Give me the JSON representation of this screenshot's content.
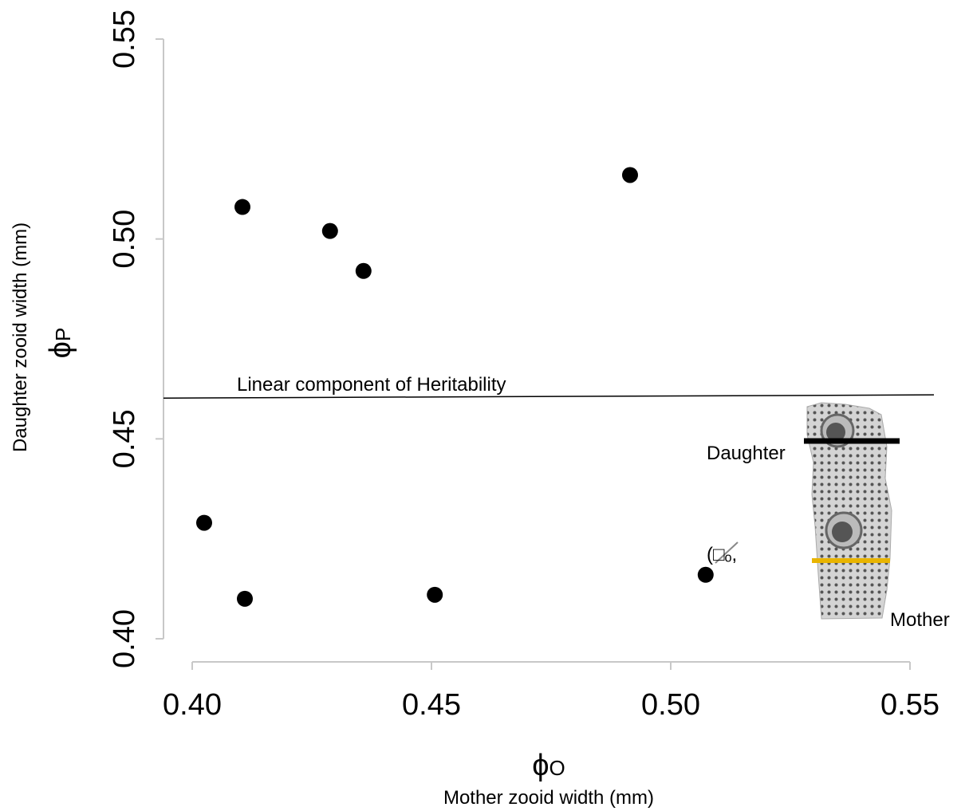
{
  "chart_data": {
    "type": "scatter",
    "x_label": "Mother zooid width (mm)",
    "x_symbol": "ϕ",
    "x_symbol_sub": "O",
    "y_label": "Daughter zooid width (mm)",
    "y_symbol": "ϕ",
    "y_symbol_sub": "P",
    "x": [
      0.4105,
      0.4288,
      0.4358,
      0.4915,
      0.4025,
      0.411,
      0.4507,
      0.5073
    ],
    "values": [
      0.508,
      0.502,
      0.492,
      0.516,
      0.429,
      0.41,
      0.411,
      0.416
    ],
    "color": "#000000",
    "xlim": [
      0.4,
      0.55
    ],
    "ylim": [
      0.4,
      0.55
    ],
    "xticks": [
      {
        "value": 0.4,
        "label": "0.40"
      },
      {
        "value": 0.45,
        "label": "0.45"
      },
      {
        "value": 0.5,
        "label": "0.50"
      },
      {
        "value": 0.55,
        "label": "0.55"
      }
    ],
    "yticks": [
      {
        "value": 0.4,
        "label": "0.40"
      },
      {
        "value": 0.45,
        "label": "0.45"
      },
      {
        "value": 0.5,
        "label": "0.50"
      },
      {
        "value": 0.55,
        "label": "0.55"
      }
    ],
    "reference_line": {
      "label": "Linear component of Heritability",
      "x": [
        0.394,
        0.555
      ],
      "y": [
        0.4602,
        0.461
      ]
    },
    "annotation": "(□ₒ,",
    "inset_labels": [
      "Daughter",
      "Mother"
    ]
  }
}
